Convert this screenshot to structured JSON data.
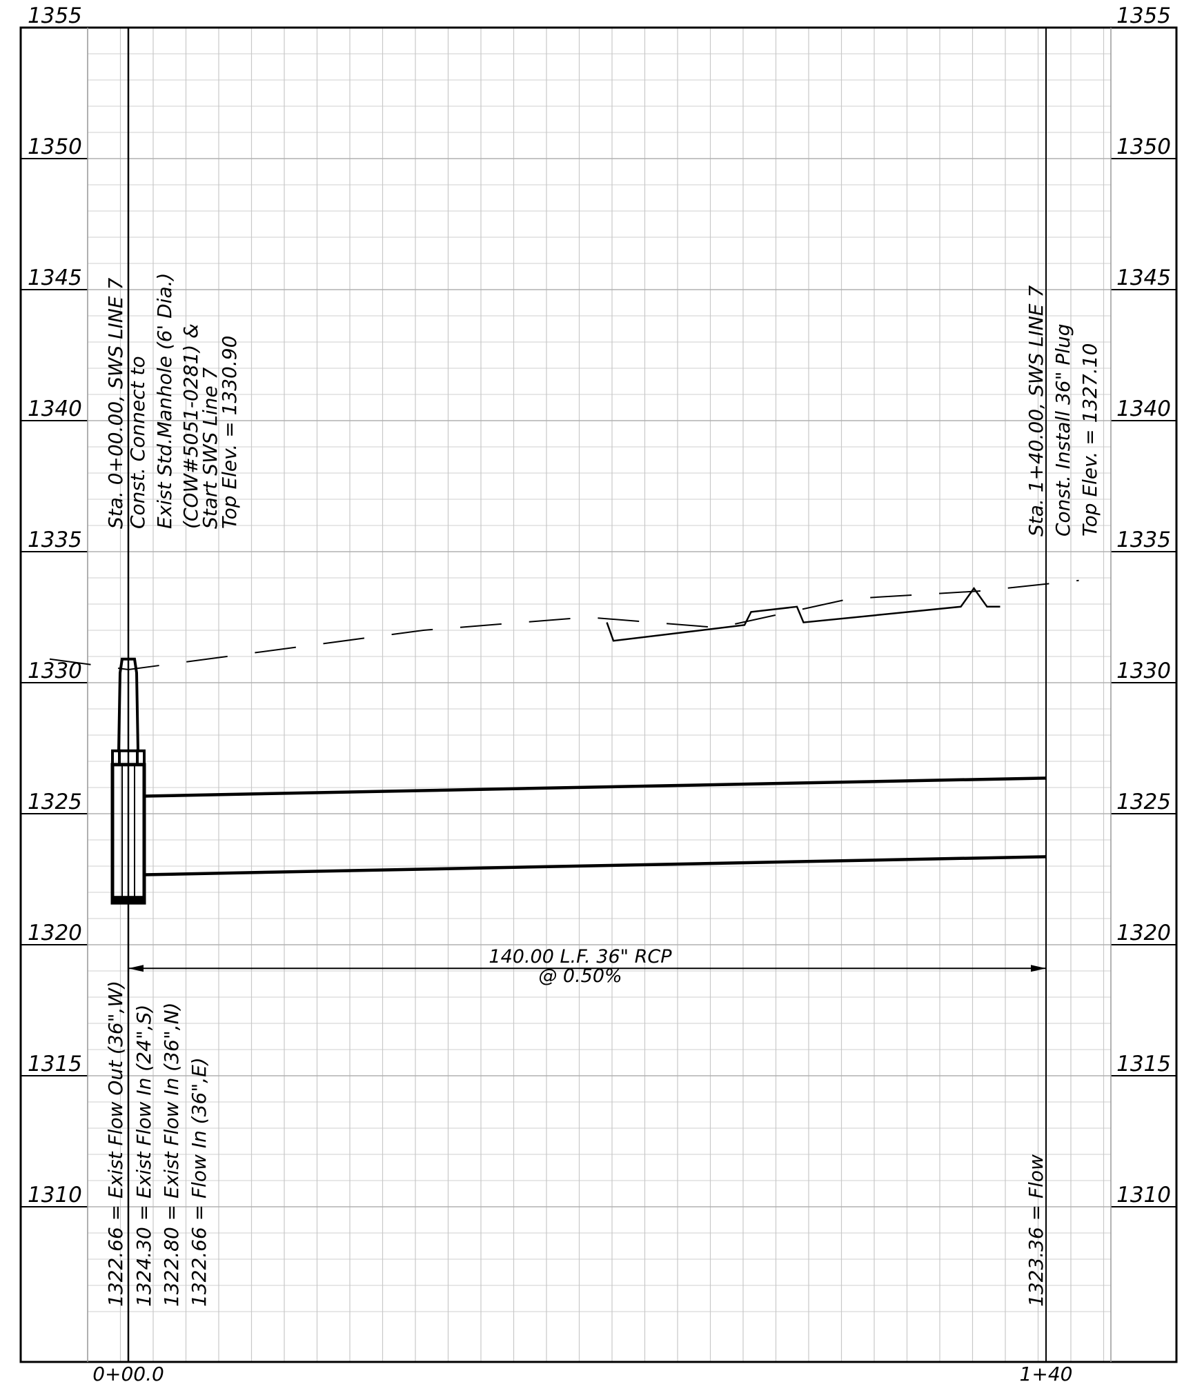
{
  "profile": {
    "elevation_min": 1305,
    "elevation_max": 1355,
    "elevation_labels_left": [
      "1355",
      "1350",
      "1345",
      "1340",
      "1335",
      "1330",
      "1325",
      "1320",
      "1315",
      "1310"
    ],
    "elevation_labels_right": [
      "1355",
      "1350",
      "1345",
      "1340",
      "1335",
      "1330",
      "1325",
      "1320",
      "1315",
      "1310"
    ],
    "station_labels": [
      "0+00.0",
      "1+40"
    ],
    "start_station_notes": [
      "Sta. 0+00.00, SWS LINE 7",
      "Const. Connect to",
      "Exist Std.Manhole (6' Dia.)",
      "(COW#5051-0281) &",
      "Start SWS Line 7",
      "Top Elev. = 1330.90"
    ],
    "end_station_notes": [
      "Sta. 1+40.00, SWS LINE 7",
      "Const. Install 36\" Plug",
      "Top Elev. = 1327.10"
    ],
    "start_flowlines": [
      "1322.66 = Exist Flow Out (36\",W)",
      "1324.30 = Exist Flow In (24\",S)",
      "1322.80 = Exist Flow In (36\",N)",
      "1322.66 = Flow In (36\",E)"
    ],
    "end_flowlines": [
      "1323.36 = Flow"
    ],
    "pipe_label": "140.00 L.F. 36\" RCP",
    "pipe_slope": "@ 0.50%",
    "pipe": {
      "start_station": 0,
      "end_station": 140,
      "invert_start": 1322.66,
      "invert_end": 1323.36,
      "diameter_ft": 3
    },
    "manhole": {
      "station": 0,
      "top_elev": 1330.9,
      "bottom_elev": 1321.6
    },
    "grade_dashed": [
      [
        -12,
        1330.9
      ],
      [
        0,
        1330.5
      ],
      [
        45,
        1332.0
      ],
      [
        70,
        1332.5
      ],
      [
        90,
        1332.1
      ],
      [
        110,
        1333.2
      ],
      [
        130,
        1333.5
      ],
      [
        145,
        1333.9
      ]
    ],
    "grade_solid": [
      [
        73,
        1332.3
      ],
      [
        74,
        1331.6
      ],
      [
        94,
        1332.2
      ],
      [
        95,
        1332.7
      ],
      [
        102,
        1332.9
      ],
      [
        103,
        1332.3
      ],
      [
        127,
        1332.9
      ],
      [
        129,
        1333.6
      ],
      [
        131,
        1332.9
      ],
      [
        133,
        1332.9
      ]
    ]
  }
}
